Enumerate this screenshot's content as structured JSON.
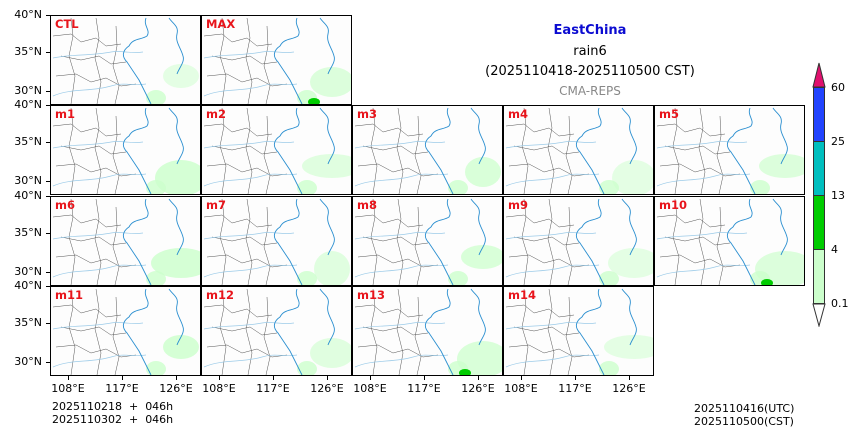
{
  "header": {
    "region": "EastChina",
    "variable": "rain6",
    "period": "(2025110418-2025110500 CST)",
    "model": "CMA-REPS",
    "region_color": "#0b0bd1",
    "model_color": "#888888"
  },
  "panels": [
    {
      "label": "CTL",
      "row": 0,
      "col": 0
    },
    {
      "label": "MAX",
      "row": 0,
      "col": 1
    },
    {
      "label": "m1",
      "row": 1,
      "col": 0
    },
    {
      "label": "m2",
      "row": 1,
      "col": 1
    },
    {
      "label": "m3",
      "row": 1,
      "col": 2
    },
    {
      "label": "m4",
      "row": 1,
      "col": 3
    },
    {
      "label": "m5",
      "row": 1,
      "col": 4
    },
    {
      "label": "m6",
      "row": 2,
      "col": 0
    },
    {
      "label": "m7",
      "row": 2,
      "col": 1
    },
    {
      "label": "m8",
      "row": 2,
      "col": 2
    },
    {
      "label": "m9",
      "row": 2,
      "col": 3
    },
    {
      "label": "m10",
      "row": 2,
      "col": 4
    },
    {
      "label": "m11",
      "row": 3,
      "col": 0
    },
    {
      "label": "m12",
      "row": 3,
      "col": 1
    },
    {
      "label": "m13",
      "row": 3,
      "col": 2
    },
    {
      "label": "m14",
      "row": 3,
      "col": 3
    }
  ],
  "axes": {
    "y_ticks": [
      "40°N",
      "35°N",
      "30°N"
    ],
    "x_ticks": [
      "108°E",
      "117°E",
      "126°E"
    ]
  },
  "colorbar": {
    "levels": [
      "0.1",
      "4",
      "13",
      "25",
      "60"
    ],
    "colors": [
      "#ccffcc",
      "#00cc00",
      "#00bfbf",
      "#2244ff"
    ],
    "over_color": "#e0106e",
    "under_color": "#ffffff"
  },
  "footer": {
    "init_line1": "2025110218  +  046h",
    "init_line2": "2025110302  +  046h",
    "valid_utc": "2025110416(UTC)",
    "valid_cst": "2025110500(CST)"
  },
  "chart_data": {
    "type": "heatmap",
    "title": "EastChina rain6 (2025110418-2025110500 CST) CMA-REPS",
    "description": "Ensemble postage-stamp maps of 6-hour accumulated rainfall over East China",
    "panels": [
      "CTL",
      "MAX",
      "m1",
      "m2",
      "m3",
      "m4",
      "m5",
      "m6",
      "m7",
      "m8",
      "m9",
      "m10",
      "m11",
      "m12",
      "m13",
      "m14"
    ],
    "xlabel": "",
    "ylabel": "",
    "x_ticks": [
      "108°E",
      "117°E",
      "126°E"
    ],
    "y_ticks": [
      "30°N",
      "35°N",
      "40°N"
    ],
    "xlim": [
      105,
      130
    ],
    "ylim": [
      28,
      40
    ],
    "colorbar_levels": [
      0.1,
      4,
      13,
      25,
      60
    ],
    "colorbar_colors": [
      "#ccffcc",
      "#00cc00",
      "#00bfbf",
      "#2244ff"
    ],
    "colorbar_extend": "both"
  }
}
